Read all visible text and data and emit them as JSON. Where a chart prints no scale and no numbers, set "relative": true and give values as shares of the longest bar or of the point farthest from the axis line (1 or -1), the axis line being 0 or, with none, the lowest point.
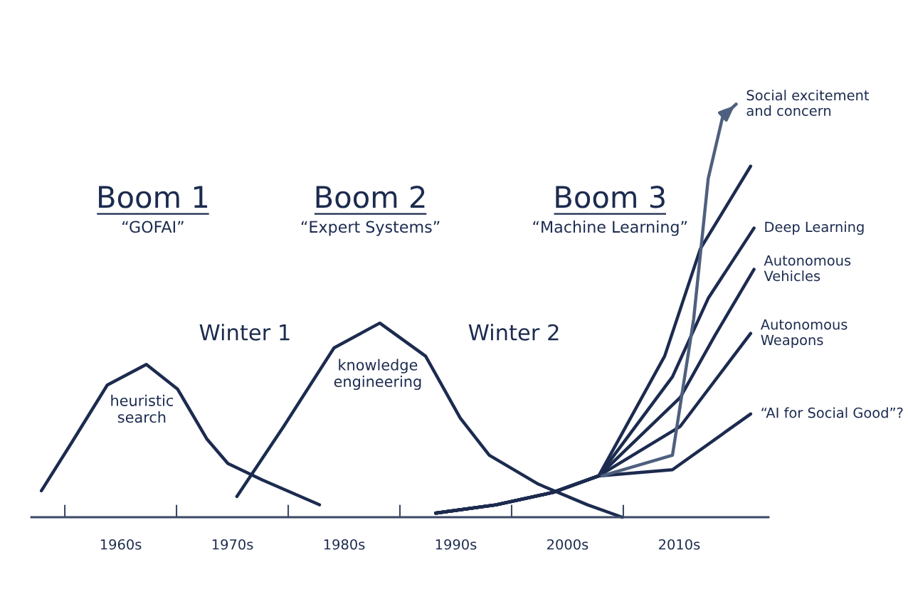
{
  "chart_data": {
    "type": "line",
    "relative": true,
    "tick_labels": "x",
    "xlim": [
      1952,
      2018
    ],
    "xticks": [
      {
        "value": 1960,
        "label": "1960s"
      },
      {
        "value": 1970,
        "label": "1970s"
      },
      {
        "value": 1980,
        "label": "1980s"
      },
      {
        "value": 1990,
        "label": "1990s"
      },
      {
        "value": 2000,
        "label": "2000s"
      },
      {
        "value": 2010,
        "label": "2010s"
      }
    ],
    "series": [
      {
        "color": "#1c2b4f",
        "x": [
          1952.9,
          1955.6,
          1958.8,
          1962.3,
          1965.1,
          1967.7,
          1969.6,
          1972.7,
          1977.8
        ],
        "values": [
          0.064,
          0.18,
          0.32,
          0.37,
          0.31,
          0.19,
          0.13,
          0.09,
          0.03
        ]
      },
      {
        "color": "#1c2b4f",
        "x": [
          1970.4,
          1974.6,
          1979.1,
          1983.2,
          1987.3,
          1990.4,
          1993.0,
          1997.4,
          2001.8,
          2004.9
        ],
        "values": [
          0.05,
          0.22,
          0.41,
          0.47,
          0.39,
          0.24,
          0.15,
          0.08,
          0.03,
          0.0
        ]
      },
      {
        "name": "“AI for Social Good”?",
        "color": "#1c2b4f",
        "x": [
          1988.2,
          1993.6,
          1998.7,
          2002.8,
          2009.4,
          2016.4
        ],
        "values": [
          0.01,
          0.03,
          0.06,
          0.1,
          0.115,
          0.25
        ]
      },
      {
        "name": "Autonomous\nWeapons",
        "color": "#1c2b4f",
        "x": [
          1988.2,
          1993.6,
          1998.7,
          2002.8,
          2010.1,
          2016.4
        ],
        "values": [
          0.01,
          0.03,
          0.06,
          0.1,
          0.22,
          0.445
        ]
      },
      {
        "name": "Autonomous\nVehicles",
        "color": "#1c2b4f",
        "x": [
          1988.2,
          1993.6,
          1998.7,
          2002.8,
          2010.1,
          2013.2,
          2016.7
        ],
        "values": [
          0.01,
          0.03,
          0.06,
          0.1,
          0.29,
          0.44,
          0.6
        ]
      },
      {
        "name": "Deep Learning",
        "color": "#1c2b4f",
        "x": [
          1988.2,
          1993.6,
          1998.7,
          2002.8,
          2009.4,
          2012.6,
          2016.7
        ],
        "values": [
          0.01,
          0.03,
          0.06,
          0.1,
          0.34,
          0.53,
          0.7
        ]
      },
      {
        "color": "#1c2b4f",
        "x": [
          1988.2,
          1993.6,
          1998.7,
          2002.8,
          2008.7,
          2011.9,
          2016.4
        ],
        "values": [
          0.01,
          0.03,
          0.06,
          0.1,
          0.39,
          0.65,
          0.85
        ]
      },
      {
        "name": "Social excitement\nand concern",
        "color": "#4f607e",
        "x": [
          2003.1,
          2009.4,
          2011.3,
          2012.6,
          2013.9,
          2015.1
        ],
        "values": [
          0.1,
          0.15,
          0.48,
          0.82,
          0.97,
          1.0
        ]
      }
    ],
    "annotations": [
      "Boom 1\n“GOFAI”",
      "Boom 2\n“Expert Systems”",
      "Boom 3\n“Machine Learning”",
      "Winter 1",
      "Winter 2",
      "heuristic\nsearch",
      "knowledge\nengineering"
    ]
  }
}
